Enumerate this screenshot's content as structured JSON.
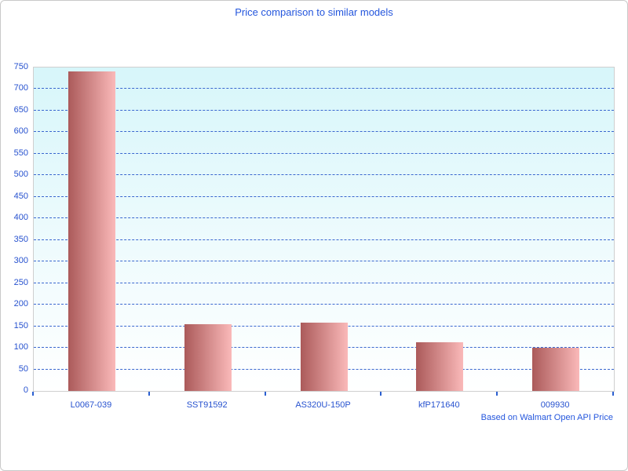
{
  "chart_data": {
    "type": "bar",
    "title": "Price comparison to similar models",
    "categories": [
      "L0067-039",
      "SST91592",
      "AS320U-150P",
      "kfP171640",
      "009930"
    ],
    "values": [
      741,
      154,
      158,
      112,
      101
    ],
    "xlabel": "",
    "ylabel": "",
    "ylim": [
      0,
      750
    ],
    "ytick_step": 50,
    "grid": "horizontal-dashed",
    "legend": "none",
    "annotation": "Based on Walmart Open API Price"
  },
  "colors": {
    "title_text": "#2456dd",
    "axis_text": "#2752cf",
    "gridline": "#3a67cf",
    "bar_gradient_start": "#ab5a5a",
    "bar_gradient_end": "#fab9b9",
    "plot_bg_top": "#d7f6fa",
    "plot_bg_bottom": "#ffffff",
    "plot_border": "#cfcfcf",
    "page_border": "#c9c9c9"
  }
}
